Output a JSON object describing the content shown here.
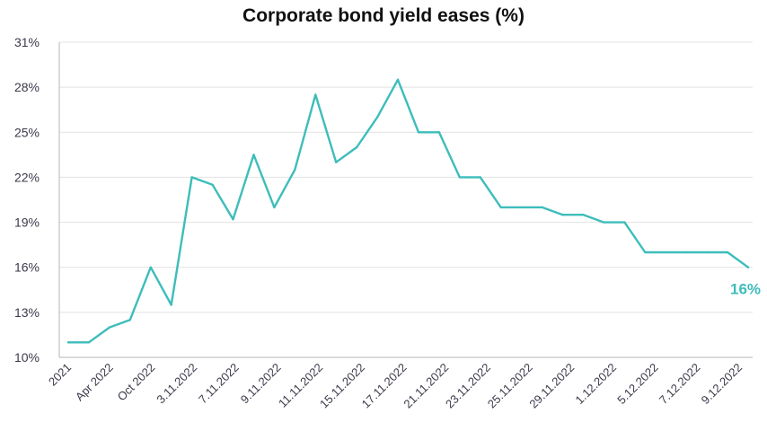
{
  "chart_data": {
    "type": "line",
    "title": "Corporate bond yield eases (%)",
    "xlabel": "",
    "ylabel": "",
    "ylim": [
      10,
      31
    ],
    "yticks": [
      "10%",
      "13%",
      "16%",
      "19%",
      "22%",
      "25%",
      "28%",
      "31%"
    ],
    "ytick_values": [
      10,
      13,
      16,
      19,
      22,
      25,
      28,
      31
    ],
    "x_tick_labels": [
      "2021",
      "Apr 2022",
      "Oct 2022",
      "3.11.2022",
      "7.11.2022",
      "9.11.2022",
      "11.11.2022",
      "15.11.2022",
      "17.11.2022",
      "21.11.2022",
      "23.11.2022",
      "25.11.2022",
      "29.11.2022",
      "1.12.2022",
      "5.12.2022",
      "7.12.2022",
      "9.12.2022"
    ],
    "series": [
      {
        "values": [
          11,
          11,
          12,
          12.5,
          16,
          13.5,
          22,
          21.5,
          19.2,
          23.5,
          20,
          22.5,
          27.5,
          23,
          24,
          26,
          28.5,
          25,
          25,
          22,
          22,
          20,
          20,
          20,
          19.5,
          19.5,
          19,
          19,
          17,
          17,
          17,
          17,
          17,
          16
        ]
      }
    ],
    "end_label": "16%",
    "grid": true,
    "legend": "none",
    "colors": {
      "line": "#3dbdbb",
      "grid": "#e2e2e2",
      "axis": "#b5b5b5",
      "text": "#3a3a4a"
    }
  }
}
